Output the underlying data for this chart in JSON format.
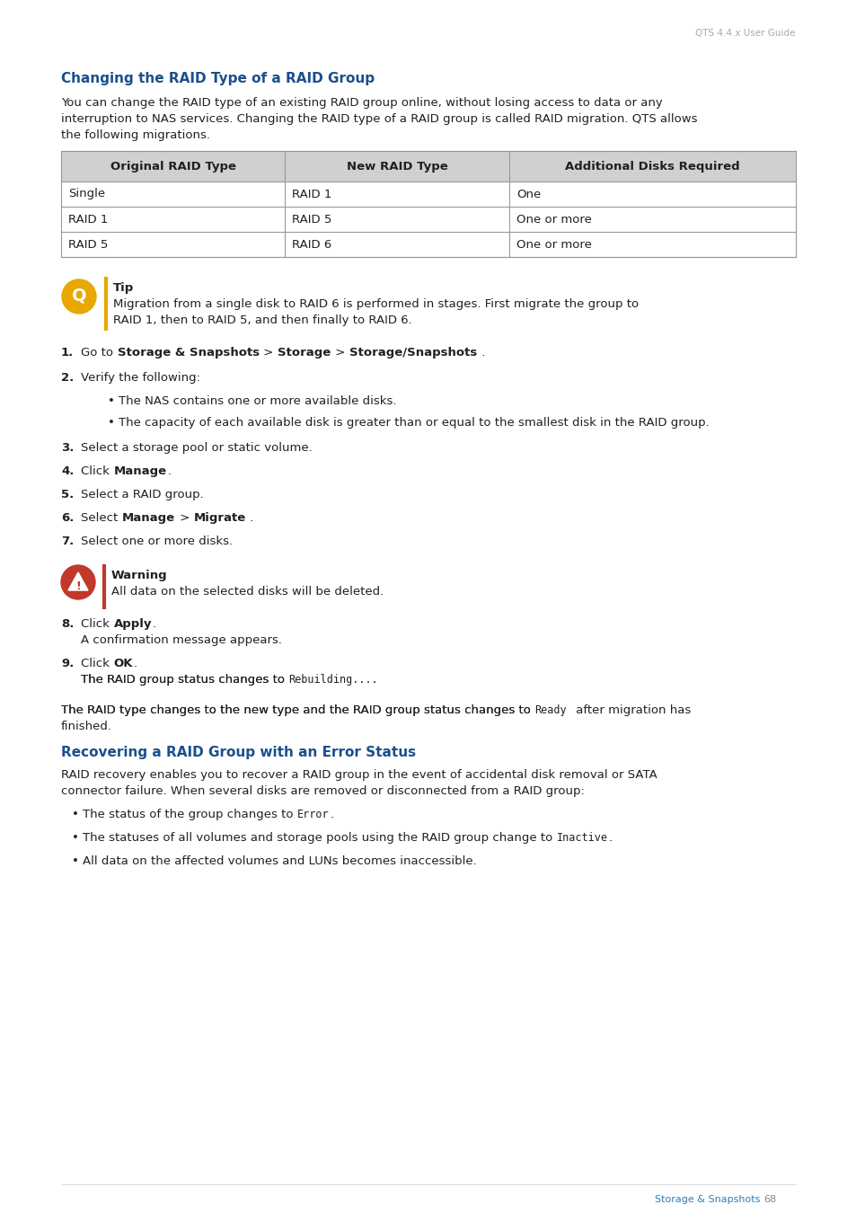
{
  "page_header": "QTS 4.4.x User Guide",
  "section1_title": "Changing the RAID Type of a RAID Group",
  "section1_intro1": "You can change the RAID type of an existing RAID group online, without losing access to data or any",
  "section1_intro2": "interruption to NAS services. Changing the RAID type of a RAID group is called RAID migration. QTS allows",
  "section1_intro3": "the following migrations.",
  "table_headers": [
    "Original RAID Type",
    "New RAID Type",
    "Additional Disks Required"
  ],
  "table_rows": [
    [
      "Single",
      "RAID 1",
      "One"
    ],
    [
      "RAID 1",
      "RAID 5",
      "One or more"
    ],
    [
      "RAID 5",
      "RAID 6",
      "One or more"
    ]
  ],
  "tip_title": "Tip",
  "tip_line1": "Migration from a single disk to RAID 6 is performed in stages. First migrate the group to",
  "tip_line2": "RAID 1, then to RAID 5, and then finally to RAID 6.",
  "warning_title": "Warning",
  "warning_text": "All data on the selected disks will be deleted.",
  "section2_title": "Recovering a RAID Group with an Error Status",
  "section2_intro1": "RAID recovery enables you to recover a RAID group in the event of accidental disk removal or SATA",
  "section2_intro2": "connector failure. When several disks are removed or disconnected from a RAID group:",
  "footer_text": "Storage & Snapshots",
  "footer_page": "68",
  "bg_color": "#ffffff",
  "text_color": "#231f20",
  "blue_color": "#1b4f8c",
  "table_header_bg": "#d0d0d0",
  "table_border_color": "#999999",
  "tip_icon_color": "#e8a800",
  "warning_icon_color": "#c0392b",
  "sidebar_color": "#e8a800",
  "warning_bar_color": "#c0392b"
}
